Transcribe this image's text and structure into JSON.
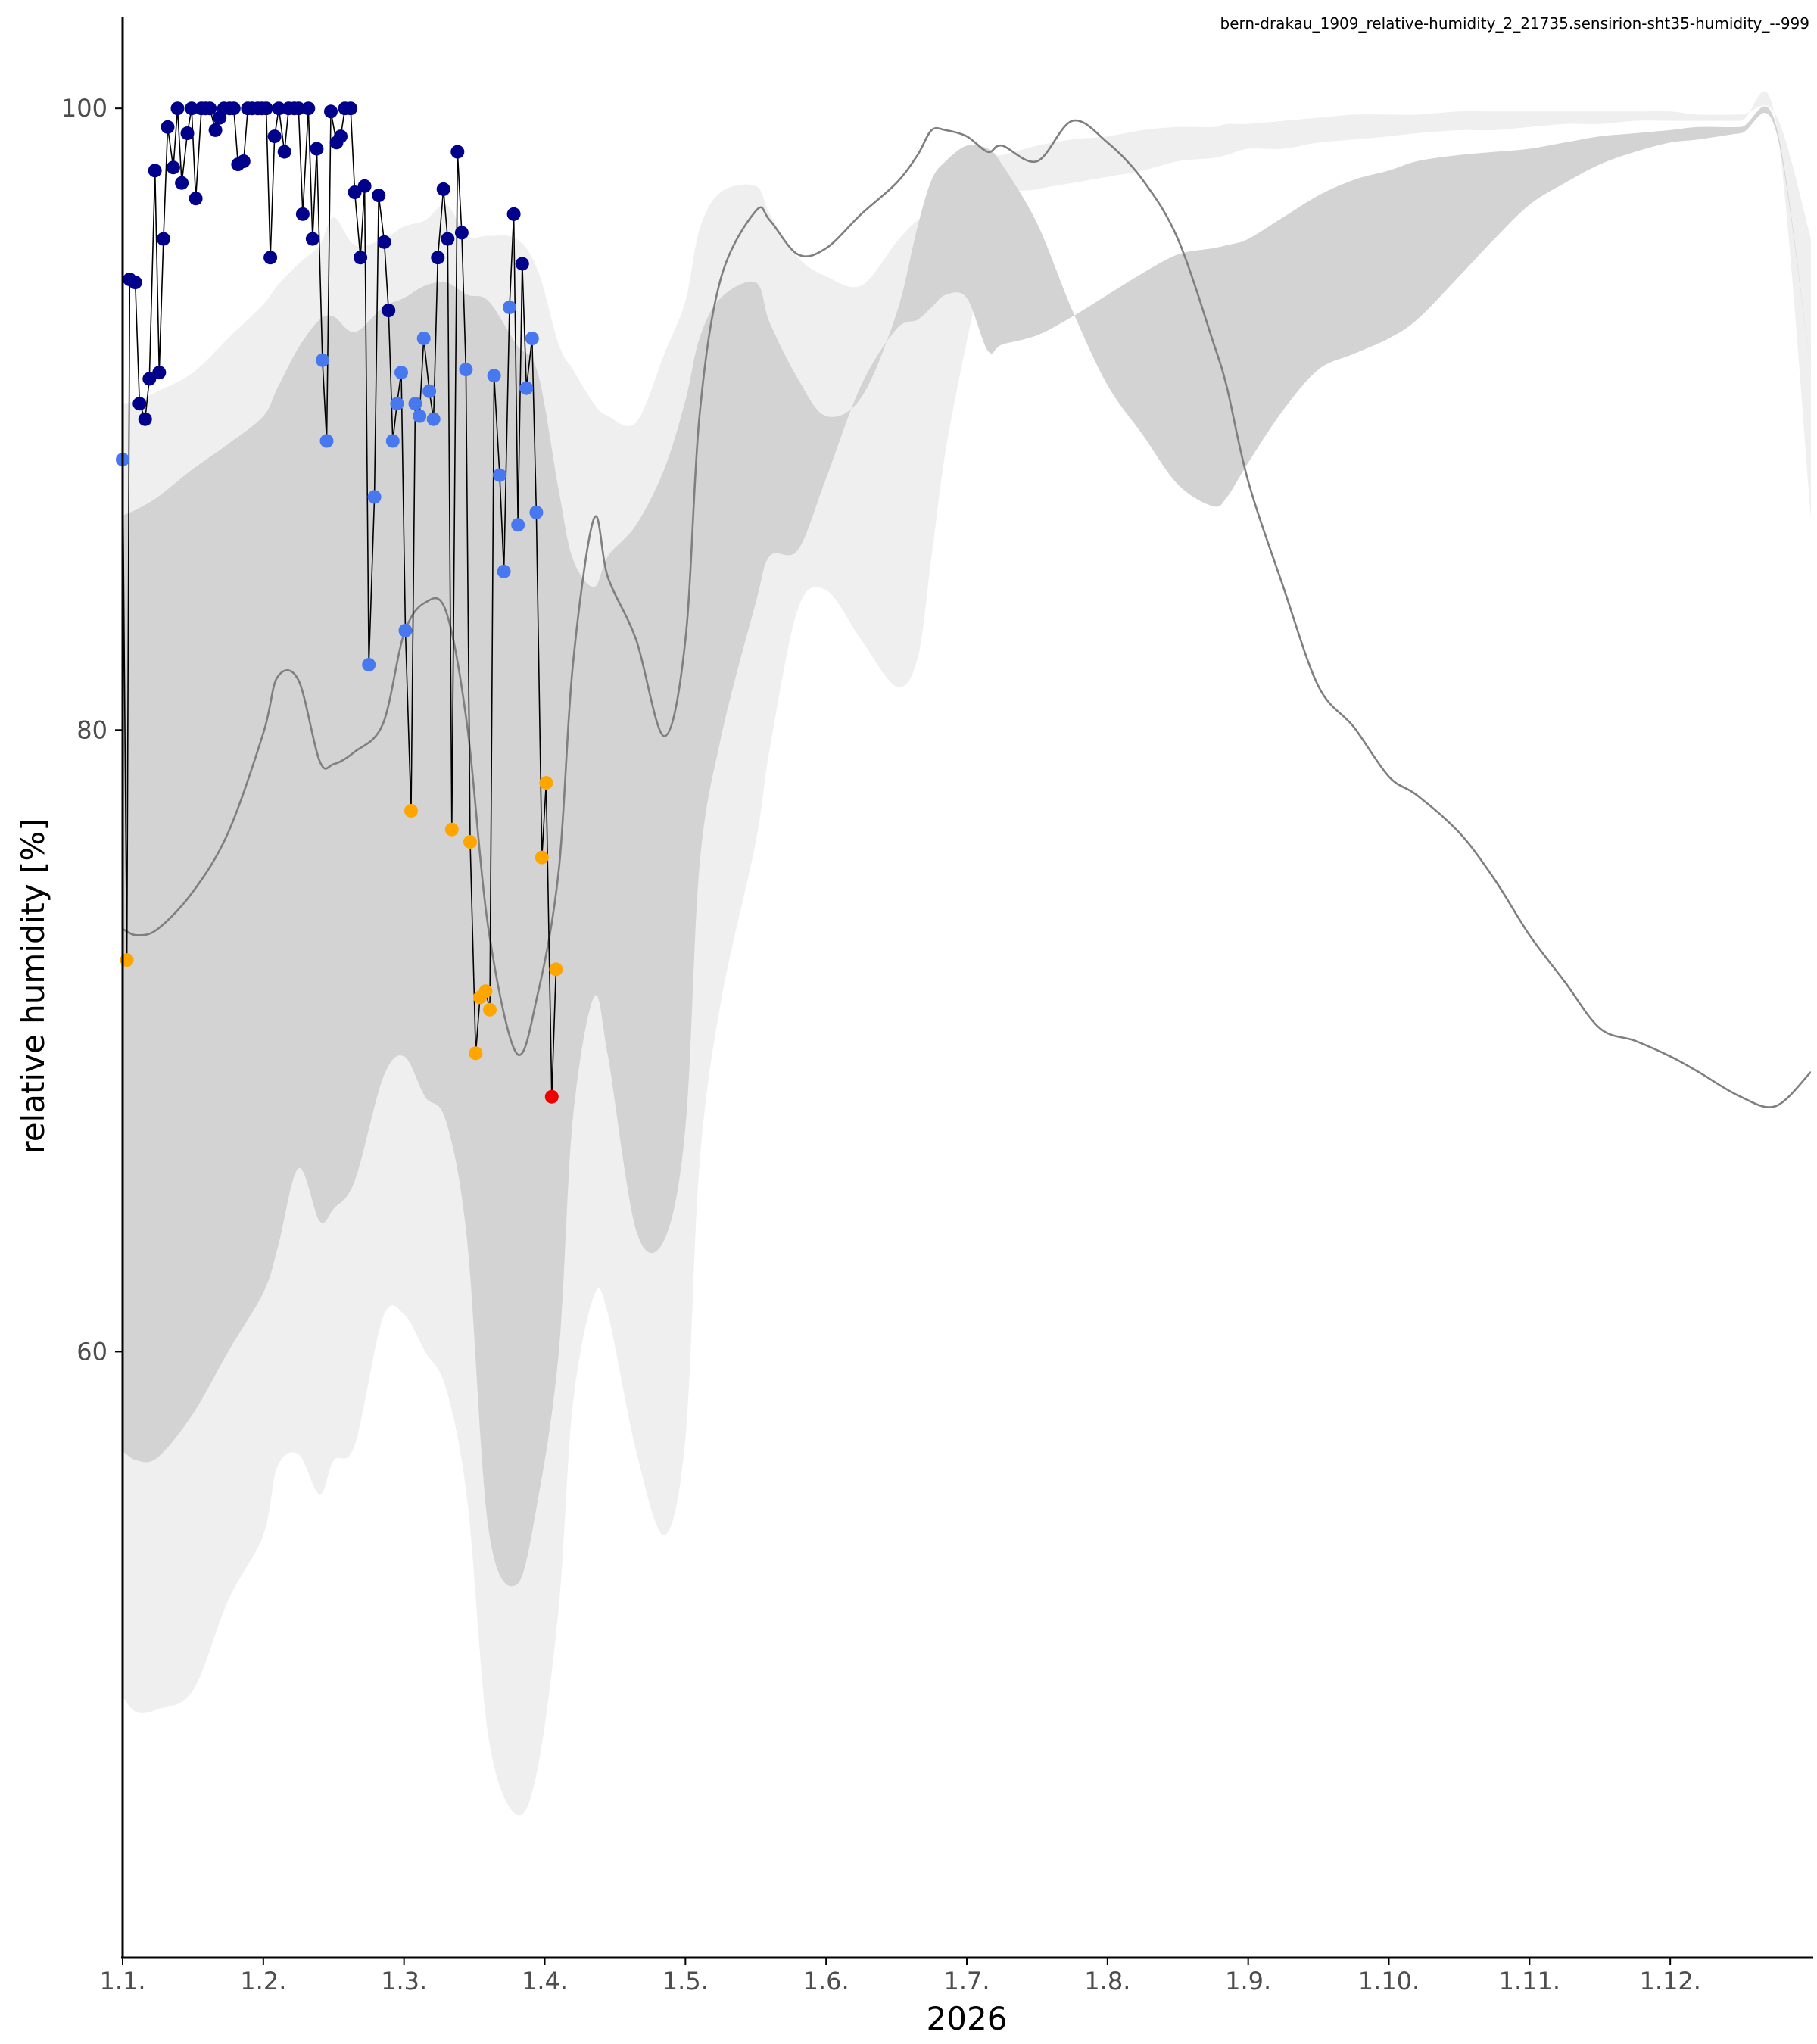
{
  "chart_data": {
    "type": "line",
    "title": "bern-drakau_1909_relative-humidity_2_21735.sensirion-sht35-humidity_--999",
    "xlabel": "2026",
    "ylabel": "relative humidity [%]",
    "x_unit": "month (1.1. = Jan 1)",
    "xlim": [
      1,
      13
    ],
    "ylim": [
      40.5,
      103
    ],
    "grid": false,
    "x_ticks": [
      {
        "x": 1,
        "label": "1.1."
      },
      {
        "x": 2,
        "label": "1.2."
      },
      {
        "x": 3,
        "label": "1.3."
      },
      {
        "x": 4,
        "label": "1.4."
      },
      {
        "x": 5,
        "label": "1.5."
      },
      {
        "x": 6,
        "label": "1.6."
      },
      {
        "x": 7,
        "label": "1.7."
      },
      {
        "x": 8,
        "label": "1.8."
      },
      {
        "x": 9,
        "label": "1.9."
      },
      {
        "x": 10,
        "label": "1.10."
      },
      {
        "x": 11,
        "label": "1.11."
      },
      {
        "x": 12,
        "label": "1.12."
      }
    ],
    "y_ticks": [
      {
        "y": 60,
        "label": "60"
      },
      {
        "y": 80,
        "label": "80"
      },
      {
        "y": 100,
        "label": "100"
      }
    ],
    "colors": {
      "outer_band": "#efefef",
      "inner_band": "#d3d3d3",
      "median": "#7f7f7f",
      "obs_line": "#000000",
      "very_high": "#00008b",
      "high": "#4878f0",
      "low": "#ffa500",
      "very_low": "#ee0000"
    },
    "x": [
      1.0,
      1.1,
      1.25,
      1.5,
      1.75,
      2.0,
      2.1,
      2.25,
      2.4,
      2.5,
      2.65,
      2.85,
      3.0,
      3.15,
      3.3,
      3.45,
      3.6,
      3.8,
      3.95,
      4.1,
      4.2,
      4.35,
      4.45,
      4.65,
      4.85,
      5.0,
      5.1,
      5.25,
      5.5,
      5.6,
      5.8,
      6.0,
      6.25,
      6.5,
      6.65,
      6.75,
      6.85,
      7.0,
      7.15,
      7.25,
      7.5,
      7.75,
      8.0,
      8.25,
      8.5,
      8.75,
      8.85,
      9.0,
      9.25,
      9.5,
      9.75,
      10.0,
      10.2,
      10.5,
      10.75,
      11.0,
      11.25,
      11.5,
      11.75,
      12.0,
      12.2,
      12.5,
      12.75,
      13.0
    ],
    "outer_upper": [
      90.5,
      90.6,
      90.9,
      91.5,
      92.6,
      93.7,
      94.3,
      95.0,
      95.6,
      96.5,
      95.6,
      95.8,
      96.2,
      96.4,
      96.9,
      95.9,
      95.9,
      95.8,
      94.8,
      92.4,
      91.6,
      90.5,
      90.1,
      89.9,
      92.1,
      93.8,
      96.1,
      97.3,
      97.5,
      96.6,
      95.2,
      94.6,
      94.3,
      95.7,
      96.4,
      96.6,
      97.3,
      97.9,
      98.5,
      98.5,
      98.8,
      99.0,
      99.1,
      99.3,
      99.4,
      99.4,
      99.5,
      99.5,
      99.6,
      99.7,
      99.8,
      99.8,
      99.8,
      99.9,
      99.9,
      99.9,
      99.9,
      99.9,
      99.9,
      99.9,
      99.8,
      99.8,
      99.8,
      95.8
    ],
    "inner_upper": [
      86.9,
      87.1,
      87.5,
      88.4,
      89.2,
      90.1,
      91.0,
      92.3,
      93.2,
      93.3,
      92.8,
      93.6,
      93.9,
      94.3,
      94.4,
      94.0,
      93.8,
      92.4,
      91.5,
      87.7,
      85.5,
      84.6,
      85.6,
      86.6,
      88.4,
      90.6,
      92.6,
      93.9,
      94.4,
      93.1,
      91.3,
      90.1,
      90.7,
      93.4,
      96.2,
      97.7,
      98.3,
      98.8,
      98.7,
      98.2,
      96.3,
      93.5,
      91.1,
      89.5,
      87.9,
      87.2,
      87.5,
      88.6,
      90.3,
      91.6,
      92.1,
      92.6,
      93.2,
      94.6,
      95.8,
      96.9,
      97.6,
      98.2,
      98.6,
      98.9,
      99.0,
      99.2,
      99.3,
      91.5
    ],
    "median": [
      73.6,
      73.4,
      73.6,
      74.8,
      76.7,
      79.9,
      81.7,
      81.6,
      79.0,
      78.9,
      79.3,
      80.2,
      83.1,
      84.1,
      83.8,
      80.1,
      73.6,
      69.6,
      71.5,
      75.5,
      82.1,
      86.8,
      84.9,
      82.9,
      79.8,
      82.9,
      90.1,
      94.5,
      96.7,
      96.4,
      95.3,
      95.5,
      96.6,
      97.6,
      98.5,
      99.3,
      99.3,
      99.1,
      98.6,
      98.8,
      98.3,
      99.6,
      98.9,
      97.7,
      95.8,
      92.5,
      91.0,
      88.0,
      84.6,
      81.4,
      80.1,
      78.5,
      77.9,
      76.7,
      75.2,
      73.4,
      71.9,
      70.4,
      70.0,
      69.5,
      69.0,
      68.2,
      67.9,
      69.0
    ],
    "inner_lower": [
      56.8,
      56.5,
      56.6,
      58.0,
      60.0,
      61.9,
      63.3,
      65.9,
      64.2,
      64.6,
      65.5,
      68.8,
      69.5,
      68.2,
      67.4,
      63.5,
      54.3,
      52.5,
      55.2,
      60.0,
      67.5,
      71.4,
      69.5,
      63.9,
      63.6,
      67.2,
      75.6,
      79.7,
      84.1,
      85.6,
      85.8,
      88.1,
      91.1,
      92.9,
      93.2,
      93.6,
      94.0,
      93.9,
      92.2,
      92.4,
      92.7,
      93.3,
      94.0,
      94.7,
      95.3,
      95.5,
      95.6,
      95.8,
      96.5,
      97.2,
      97.7,
      98.0,
      98.3,
      98.5,
      98.6,
      98.7,
      98.9,
      99.1,
      99.2,
      99.3,
      99.4,
      99.4,
      99.5,
      91.5
    ],
    "outer_lower": [
      48.9,
      48.4,
      48.5,
      49.1,
      52.0,
      54.1,
      56.3,
      56.7,
      55.4,
      56.5,
      57.0,
      61.1,
      61.2,
      60.0,
      58.8,
      55.2,
      47.6,
      45.1,
      46.6,
      51.8,
      58.3,
      61.8,
      61.2,
      56.8,
      54.1,
      57.2,
      66.0,
      71.2,
      76.4,
      79.4,
      83.9,
      84.5,
      82.9,
      81.4,
      82.3,
      85.6,
      89.0,
      92.5,
      95.5,
      97.1,
      97.4,
      97.6,
      97.8,
      98.0,
      98.3,
      98.4,
      98.5,
      98.7,
      98.7,
      98.9,
      99.0,
      99.1,
      99.2,
      99.3,
      99.3,
      99.4,
      99.5,
      99.5,
      99.6,
      99.6,
      99.6,
      99.6,
      99.6,
      86.8
    ],
    "observations": [
      [
        1.0,
        88.7,
        "high"
      ],
      [
        1.03,
        72.6,
        "low"
      ],
      [
        1.05,
        94.5,
        "very_high"
      ],
      [
        1.09,
        94.4,
        "very_high"
      ],
      [
        1.12,
        90.5,
        "very_high"
      ],
      [
        1.16,
        90.0,
        "very_high"
      ],
      [
        1.19,
        91.3,
        "very_high"
      ],
      [
        1.23,
        98.0,
        "very_high"
      ],
      [
        1.26,
        91.5,
        "very_high"
      ],
      [
        1.29,
        95.8,
        "very_high"
      ],
      [
        1.32,
        99.4,
        "very_high"
      ],
      [
        1.36,
        98.1,
        "very_high"
      ],
      [
        1.39,
        100.0,
        "very_high"
      ],
      [
        1.42,
        97.6,
        "very_high"
      ],
      [
        1.46,
        99.2,
        "very_high"
      ],
      [
        1.49,
        100.0,
        "very_high"
      ],
      [
        1.52,
        97.1,
        "very_high"
      ],
      [
        1.56,
        100.0,
        "very_high"
      ],
      [
        1.59,
        100.0,
        "very_high"
      ],
      [
        1.62,
        100.0,
        "very_high"
      ],
      [
        1.66,
        99.3,
        "very_high"
      ],
      [
        1.69,
        99.7,
        "very_high"
      ],
      [
        1.72,
        100.0,
        "very_high"
      ],
      [
        1.76,
        100.0,
        "very_high"
      ],
      [
        1.79,
        100.0,
        "very_high"
      ],
      [
        1.82,
        98.2,
        "very_high"
      ],
      [
        1.86,
        98.3,
        "very_high"
      ],
      [
        1.89,
        100.0,
        "very_high"
      ],
      [
        1.92,
        100.0,
        "very_high"
      ],
      [
        1.96,
        100.0,
        "very_high"
      ],
      [
        1.99,
        100.0,
        "very_high"
      ],
      [
        2.02,
        100.0,
        "very_high"
      ],
      [
        2.05,
        95.2,
        "very_high"
      ],
      [
        2.08,
        99.1,
        "very_high"
      ],
      [
        2.11,
        100.0,
        "very_high"
      ],
      [
        2.15,
        98.6,
        "very_high"
      ],
      [
        2.18,
        100.0,
        "very_high"
      ],
      [
        2.22,
        100.0,
        "very_high"
      ],
      [
        2.25,
        100.0,
        "very_high"
      ],
      [
        2.28,
        96.6,
        "very_high"
      ],
      [
        2.32,
        100.0,
        "very_high"
      ],
      [
        2.35,
        95.8,
        "very_high"
      ],
      [
        2.38,
        98.7,
        "very_high"
      ],
      [
        2.42,
        91.9,
        "high"
      ],
      [
        2.45,
        89.3,
        "high"
      ],
      [
        2.48,
        99.9,
        "very_high"
      ],
      [
        2.52,
        98.9,
        "very_high"
      ],
      [
        2.55,
        99.1,
        "very_high"
      ],
      [
        2.58,
        100.0,
        "very_high"
      ],
      [
        2.62,
        100.0,
        "very_high"
      ],
      [
        2.65,
        97.3,
        "very_high"
      ],
      [
        2.69,
        95.2,
        "very_high"
      ],
      [
        2.72,
        97.5,
        "very_high"
      ],
      [
        2.75,
        82.1,
        "high"
      ],
      [
        2.79,
        87.5,
        "high"
      ],
      [
        2.82,
        97.2,
        "very_high"
      ],
      [
        2.86,
        95.7,
        "very_high"
      ],
      [
        2.89,
        93.5,
        "very_high"
      ],
      [
        2.92,
        89.3,
        "high"
      ],
      [
        2.95,
        90.5,
        "high"
      ],
      [
        2.98,
        91.5,
        "high"
      ],
      [
        3.01,
        83.2,
        "high"
      ],
      [
        3.05,
        77.4,
        "low"
      ],
      [
        3.08,
        90.5,
        "high"
      ],
      [
        3.11,
        90.1,
        "high"
      ],
      [
        3.14,
        92.6,
        "high"
      ],
      [
        3.18,
        90.9,
        "high"
      ],
      [
        3.21,
        90.0,
        "high"
      ],
      [
        3.24,
        95.2,
        "very_high"
      ],
      [
        3.28,
        97.4,
        "very_high"
      ],
      [
        3.31,
        95.8,
        "very_high"
      ],
      [
        3.34,
        76.8,
        "low"
      ],
      [
        3.38,
        98.6,
        "very_high"
      ],
      [
        3.41,
        96.0,
        "very_high"
      ],
      [
        3.44,
        91.6,
        "high"
      ],
      [
        3.47,
        76.4,
        "low"
      ],
      [
        3.51,
        69.6,
        "low"
      ],
      [
        3.54,
        71.4,
        "low"
      ],
      [
        3.58,
        71.6,
        "low"
      ],
      [
        3.61,
        71.0,
        "low"
      ],
      [
        3.64,
        91.4,
        "high"
      ],
      [
        3.68,
        88.2,
        "high"
      ],
      [
        3.71,
        85.1,
        "high"
      ],
      [
        3.75,
        93.6,
        "high"
      ],
      [
        3.78,
        96.6,
        "very_high"
      ],
      [
        3.81,
        86.6,
        "high"
      ],
      [
        3.84,
        95.0,
        "very_high"
      ],
      [
        3.87,
        91.0,
        "high"
      ],
      [
        3.91,
        92.6,
        "high"
      ],
      [
        3.94,
        87.0,
        "high"
      ],
      [
        3.98,
        75.9,
        "low"
      ],
      [
        4.01,
        78.3,
        "low"
      ],
      [
        4.05,
        68.2,
        "very_low"
      ],
      [
        4.08,
        72.3,
        "low"
      ]
    ]
  }
}
